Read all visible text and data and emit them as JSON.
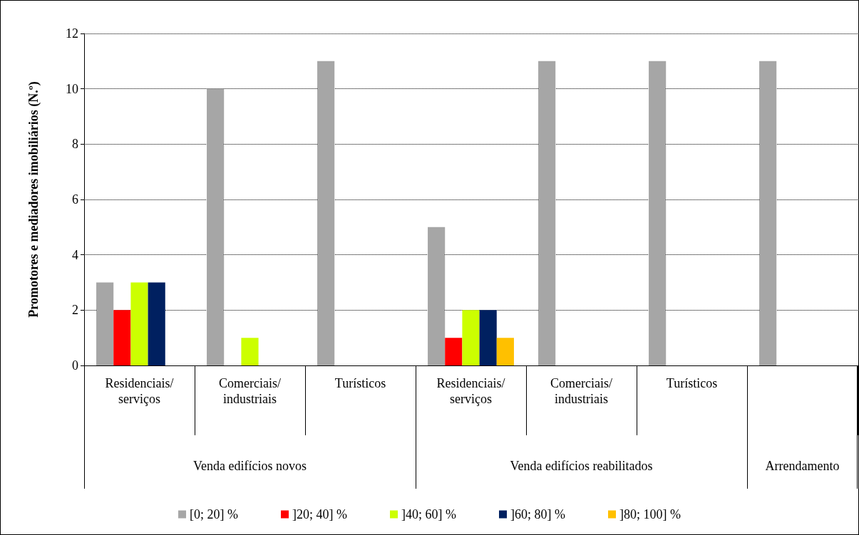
{
  "chart_data": {
    "type": "bar",
    "ylabel": "Promotores e mediadores imobiliários (N.º)",
    "categories": [
      "Residenciais/\nserviços",
      "Comerciais/\nindustriais",
      "Turísticos",
      "Residenciais/\nserviços",
      "Comerciais/\nindustriais",
      "Turísticos",
      null
    ],
    "series": [
      {
        "name": "[0; 20] %",
        "color": "#a6a6a6",
        "values": [
          3,
          10,
          11,
          5,
          11,
          11,
          11
        ]
      },
      {
        "name": "]20; 40] %",
        "color": "#ff0000",
        "values": [
          2,
          0,
          0,
          1,
          0,
          0,
          0
        ]
      },
      {
        "name": "]40; 60] %",
        "color": "#ccff00",
        "values": [
          3,
          1,
          0,
          2,
          0,
          0,
          0
        ]
      },
      {
        "name": "]60; 80] %",
        "color": "#002060",
        "values": [
          3,
          0,
          0,
          2,
          0,
          0,
          0
        ]
      },
      {
        "name": "]80; 100] %",
        "color": "#ffc000",
        "values": [
          0,
          0,
          0,
          1,
          0,
          0,
          0
        ]
      }
    ],
    "annotations": [
      "Venda edifícios novos",
      "Venda edifícios reabilitados",
      "Arrendamento"
    ],
    "ylim": [
      0,
      12
    ],
    "yticks": [
      0,
      2,
      4,
      6,
      8,
      10,
      12
    ],
    "grid": "y",
    "legend": "bottom"
  }
}
